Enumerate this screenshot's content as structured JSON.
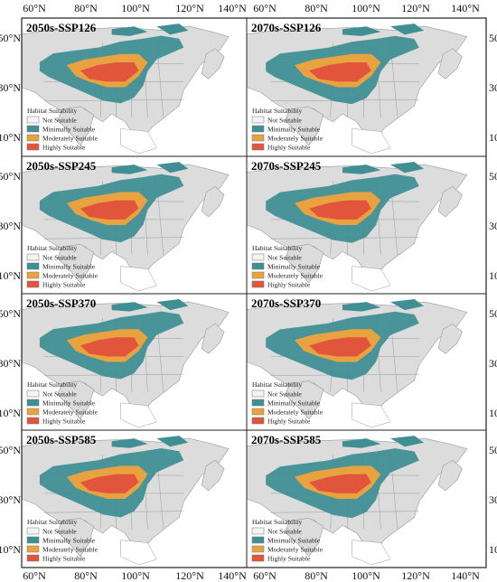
{
  "figure": {
    "top_axis_labels": [
      "60°N",
      "80°N",
      "100°N",
      "120°N",
      "140°N",
      "60°N",
      "80°N",
      "100°N",
      "120°N",
      "140°N"
    ],
    "bottom_axis_labels": [
      "60°N",
      "80°N",
      "100°N",
      "120°N",
      "140°N",
      "60°N",
      "80°N",
      "100°N",
      "120°N",
      "140°N"
    ],
    "left_axis_labels": [
      "50°N",
      "30°N",
      "10°N"
    ],
    "right_axis_labels": [
      "50°N",
      "30°N",
      "10°N"
    ]
  },
  "panels": [
    {
      "title": "2050s-SSP126",
      "suitability": {
        "minimal": 0.3,
        "moderate": 0.4,
        "high": 0.3
      }
    },
    {
      "title": "2070s-SSP126",
      "suitability": {
        "minimal": 0.32,
        "moderate": 0.38,
        "high": 0.3
      }
    },
    {
      "title": "2050s-SSP245",
      "suitability": {
        "minimal": 0.34,
        "moderate": 0.34,
        "high": 0.32
      }
    },
    {
      "title": "2070s-SSP245",
      "suitability": {
        "minimal": 0.36,
        "moderate": 0.32,
        "high": 0.32
      }
    },
    {
      "title": "2050s-SSP370",
      "suitability": {
        "minimal": 0.34,
        "moderate": 0.34,
        "high": 0.32
      }
    },
    {
      "title": "2070s-SSP370",
      "suitability": {
        "minimal": 0.36,
        "moderate": 0.3,
        "high": 0.34
      }
    },
    {
      "title": "2050s-SSP585",
      "suitability": {
        "minimal": 0.38,
        "moderate": 0.32,
        "high": 0.3
      }
    },
    {
      "title": "2070s-SSP585",
      "suitability": {
        "minimal": 0.4,
        "moderate": 0.3,
        "high": 0.3
      }
    }
  ],
  "legend": {
    "title": "Habitat Suitability",
    "items": [
      {
        "label": "Not Suitable",
        "color": "#f4f4f4"
      },
      {
        "label": "Minimally Suitable",
        "color": "#3f8f95"
      },
      {
        "label": "Moderately Suitable",
        "color": "#e8a340"
      },
      {
        "label": "Highly Suitable",
        "color": "#e0553c"
      }
    ]
  },
  "colors": {
    "land": "#dcdcdc",
    "borders": "#9a9a9a",
    "sea": "#ffffff",
    "frame": "#222222"
  }
}
